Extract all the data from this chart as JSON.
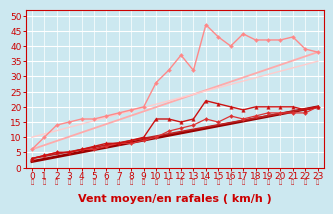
{
  "xlabel": "Vent moyen/en rafales ( km/h )",
  "background_color": "#cce8f0",
  "grid_color": "#ffffff",
  "xlim": [
    -0.5,
    23.5
  ],
  "ylim": [
    0,
    52
  ],
  "yticks": [
    0,
    5,
    10,
    15,
    20,
    25,
    30,
    35,
    40,
    45,
    50
  ],
  "xticks": [
    0,
    1,
    2,
    3,
    4,
    5,
    6,
    7,
    8,
    9,
    10,
    11,
    12,
    13,
    14,
    15,
    16,
    17,
    18,
    19,
    20,
    21,
    22,
    23
  ],
  "series": [
    {
      "label": "pink_zigzag",
      "x": [
        0,
        1,
        2,
        3,
        4,
        5,
        6,
        7,
        8,
        9,
        10,
        11,
        12,
        13,
        14,
        15,
        16,
        17,
        18,
        19,
        20,
        21,
        22,
        23
      ],
      "y": [
        6,
        10,
        14,
        15,
        16,
        16,
        17,
        18,
        19,
        20,
        28,
        32,
        37,
        32,
        47,
        43,
        40,
        44,
        42,
        42,
        42,
        43,
        39,
        38
      ],
      "color": "#ff8888",
      "linewidth": 1.0,
      "marker": "D",
      "markersize": 2.0,
      "zorder": 5
    },
    {
      "label": "light_pink_line1",
      "x": [
        0,
        23
      ],
      "y": [
        6,
        38
      ],
      "color": "#ffaaaa",
      "linewidth": 1.3,
      "marker": null,
      "markersize": 0,
      "zorder": 2
    },
    {
      "label": "light_pink_line2",
      "x": [
        0,
        23
      ],
      "y": [
        10,
        35
      ],
      "color": "#ffcccc",
      "linewidth": 1.0,
      "marker": null,
      "markersize": 0,
      "zorder": 2
    },
    {
      "label": "dark_red_zigzag",
      "x": [
        0,
        1,
        2,
        3,
        4,
        5,
        6,
        7,
        8,
        9,
        10,
        11,
        12,
        13,
        14,
        15,
        16,
        17,
        18,
        19,
        20,
        21,
        22,
        23
      ],
      "y": [
        3,
        4,
        5,
        5,
        6,
        7,
        8,
        8,
        9,
        10,
        16,
        16,
        15,
        16,
        22,
        21,
        20,
        19,
        20,
        20,
        20,
        20,
        19,
        20
      ],
      "color": "#cc1111",
      "linewidth": 1.0,
      "marker": "^",
      "markersize": 2.5,
      "zorder": 5
    },
    {
      "label": "dark_red_diamonds",
      "x": [
        0,
        1,
        2,
        3,
        4,
        5,
        6,
        7,
        8,
        9,
        10,
        11,
        12,
        13,
        14,
        15,
        16,
        17,
        18,
        19,
        20,
        21,
        22,
        23
      ],
      "y": [
        3,
        4,
        5,
        5,
        6,
        6,
        7,
        8,
        8,
        9,
        10,
        12,
        13,
        14,
        16,
        15,
        17,
        16,
        17,
        18,
        18,
        18,
        18,
        20
      ],
      "color": "#dd3333",
      "linewidth": 0.9,
      "marker": "D",
      "markersize": 2.0,
      "zorder": 4
    },
    {
      "label": "dark_red_line1",
      "x": [
        0,
        23
      ],
      "y": [
        2,
        20
      ],
      "color": "#990000",
      "linewidth": 2.0,
      "marker": null,
      "markersize": 0,
      "zorder": 3
    },
    {
      "label": "dark_red_line2",
      "x": [
        0,
        23
      ],
      "y": [
        3,
        20
      ],
      "color": "#bb2222",
      "linewidth": 1.2,
      "marker": null,
      "markersize": 0,
      "zorder": 3
    }
  ],
  "arrow_color": "#cc1111",
  "xlabel_color": "#cc0000",
  "xlabel_fontsize": 8,
  "tick_color": "#cc0000",
  "tick_fontsize": 6.5,
  "spine_color": "#cc0000"
}
